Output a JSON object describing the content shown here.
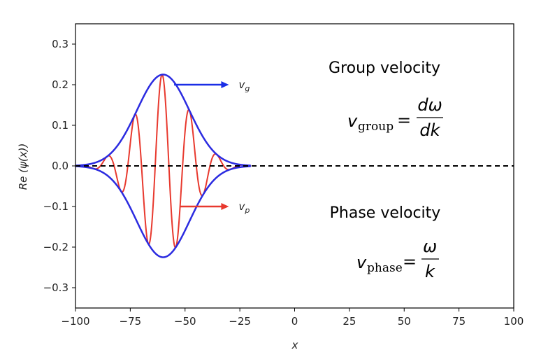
{
  "chart_data": {
    "type": "line",
    "title": "",
    "xlabel": "x",
    "ylabel": "Re (ψ(x))",
    "xlim": [
      -100,
      100
    ],
    "ylim": [
      -0.35,
      0.35
    ],
    "x_ticks": [
      -100,
      -75,
      -50,
      -25,
      0,
      25,
      50,
      75,
      100
    ],
    "x_tick_labels": [
      "−100",
      "−75",
      "−50",
      "−25",
      "0",
      "25",
      "50",
      "75",
      "100"
    ],
    "y_ticks": [
      -0.3,
      -0.2,
      -0.1,
      0.0,
      0.1,
      0.2,
      0.3
    ],
    "y_tick_labels": [
      "−0.3",
      "−0.2",
      "−0.1",
      "0.0",
      "0.1",
      "0.2",
      "0.3"
    ],
    "grid": false,
    "wave_packet": {
      "center": -60,
      "amplitude": 0.225,
      "width": 12,
      "wavelength": 12.5,
      "x_range": [
        -100,
        -20
      ]
    },
    "series": [
      {
        "color": "#2b2be0",
        "values_kind": "envelope_upper"
      },
      {
        "color": "#2b2be0",
        "values_kind": "envelope_lower"
      },
      {
        "color": "#e8392e",
        "values_kind": "real_part"
      },
      {
        "color": "#000000",
        "values_kind": "zero_line"
      }
    ],
    "arrows": [
      {
        "label": "v",
        "subscript": "g",
        "color": "#1a2ee6",
        "from": [
          -55,
          0.2
        ],
        "to": [
          -30,
          0.2
        ]
      },
      {
        "label": "v",
        "subscript": "p",
        "color": "#e8392e",
        "from": [
          -52,
          -0.1
        ],
        "to": [
          -30,
          -0.1
        ]
      }
    ],
    "annotations": {
      "group_title": "Group velocity",
      "group_lhs_var": "v",
      "group_lhs_sub": "group",
      "group_numerator": "dω",
      "group_denominator": "dk",
      "phase_title": "Phase velocity",
      "phase_lhs_var": "v",
      "phase_lhs_sub": "phase",
      "phase_numerator": "ω",
      "phase_denominator": "k",
      "equals": "="
    }
  }
}
